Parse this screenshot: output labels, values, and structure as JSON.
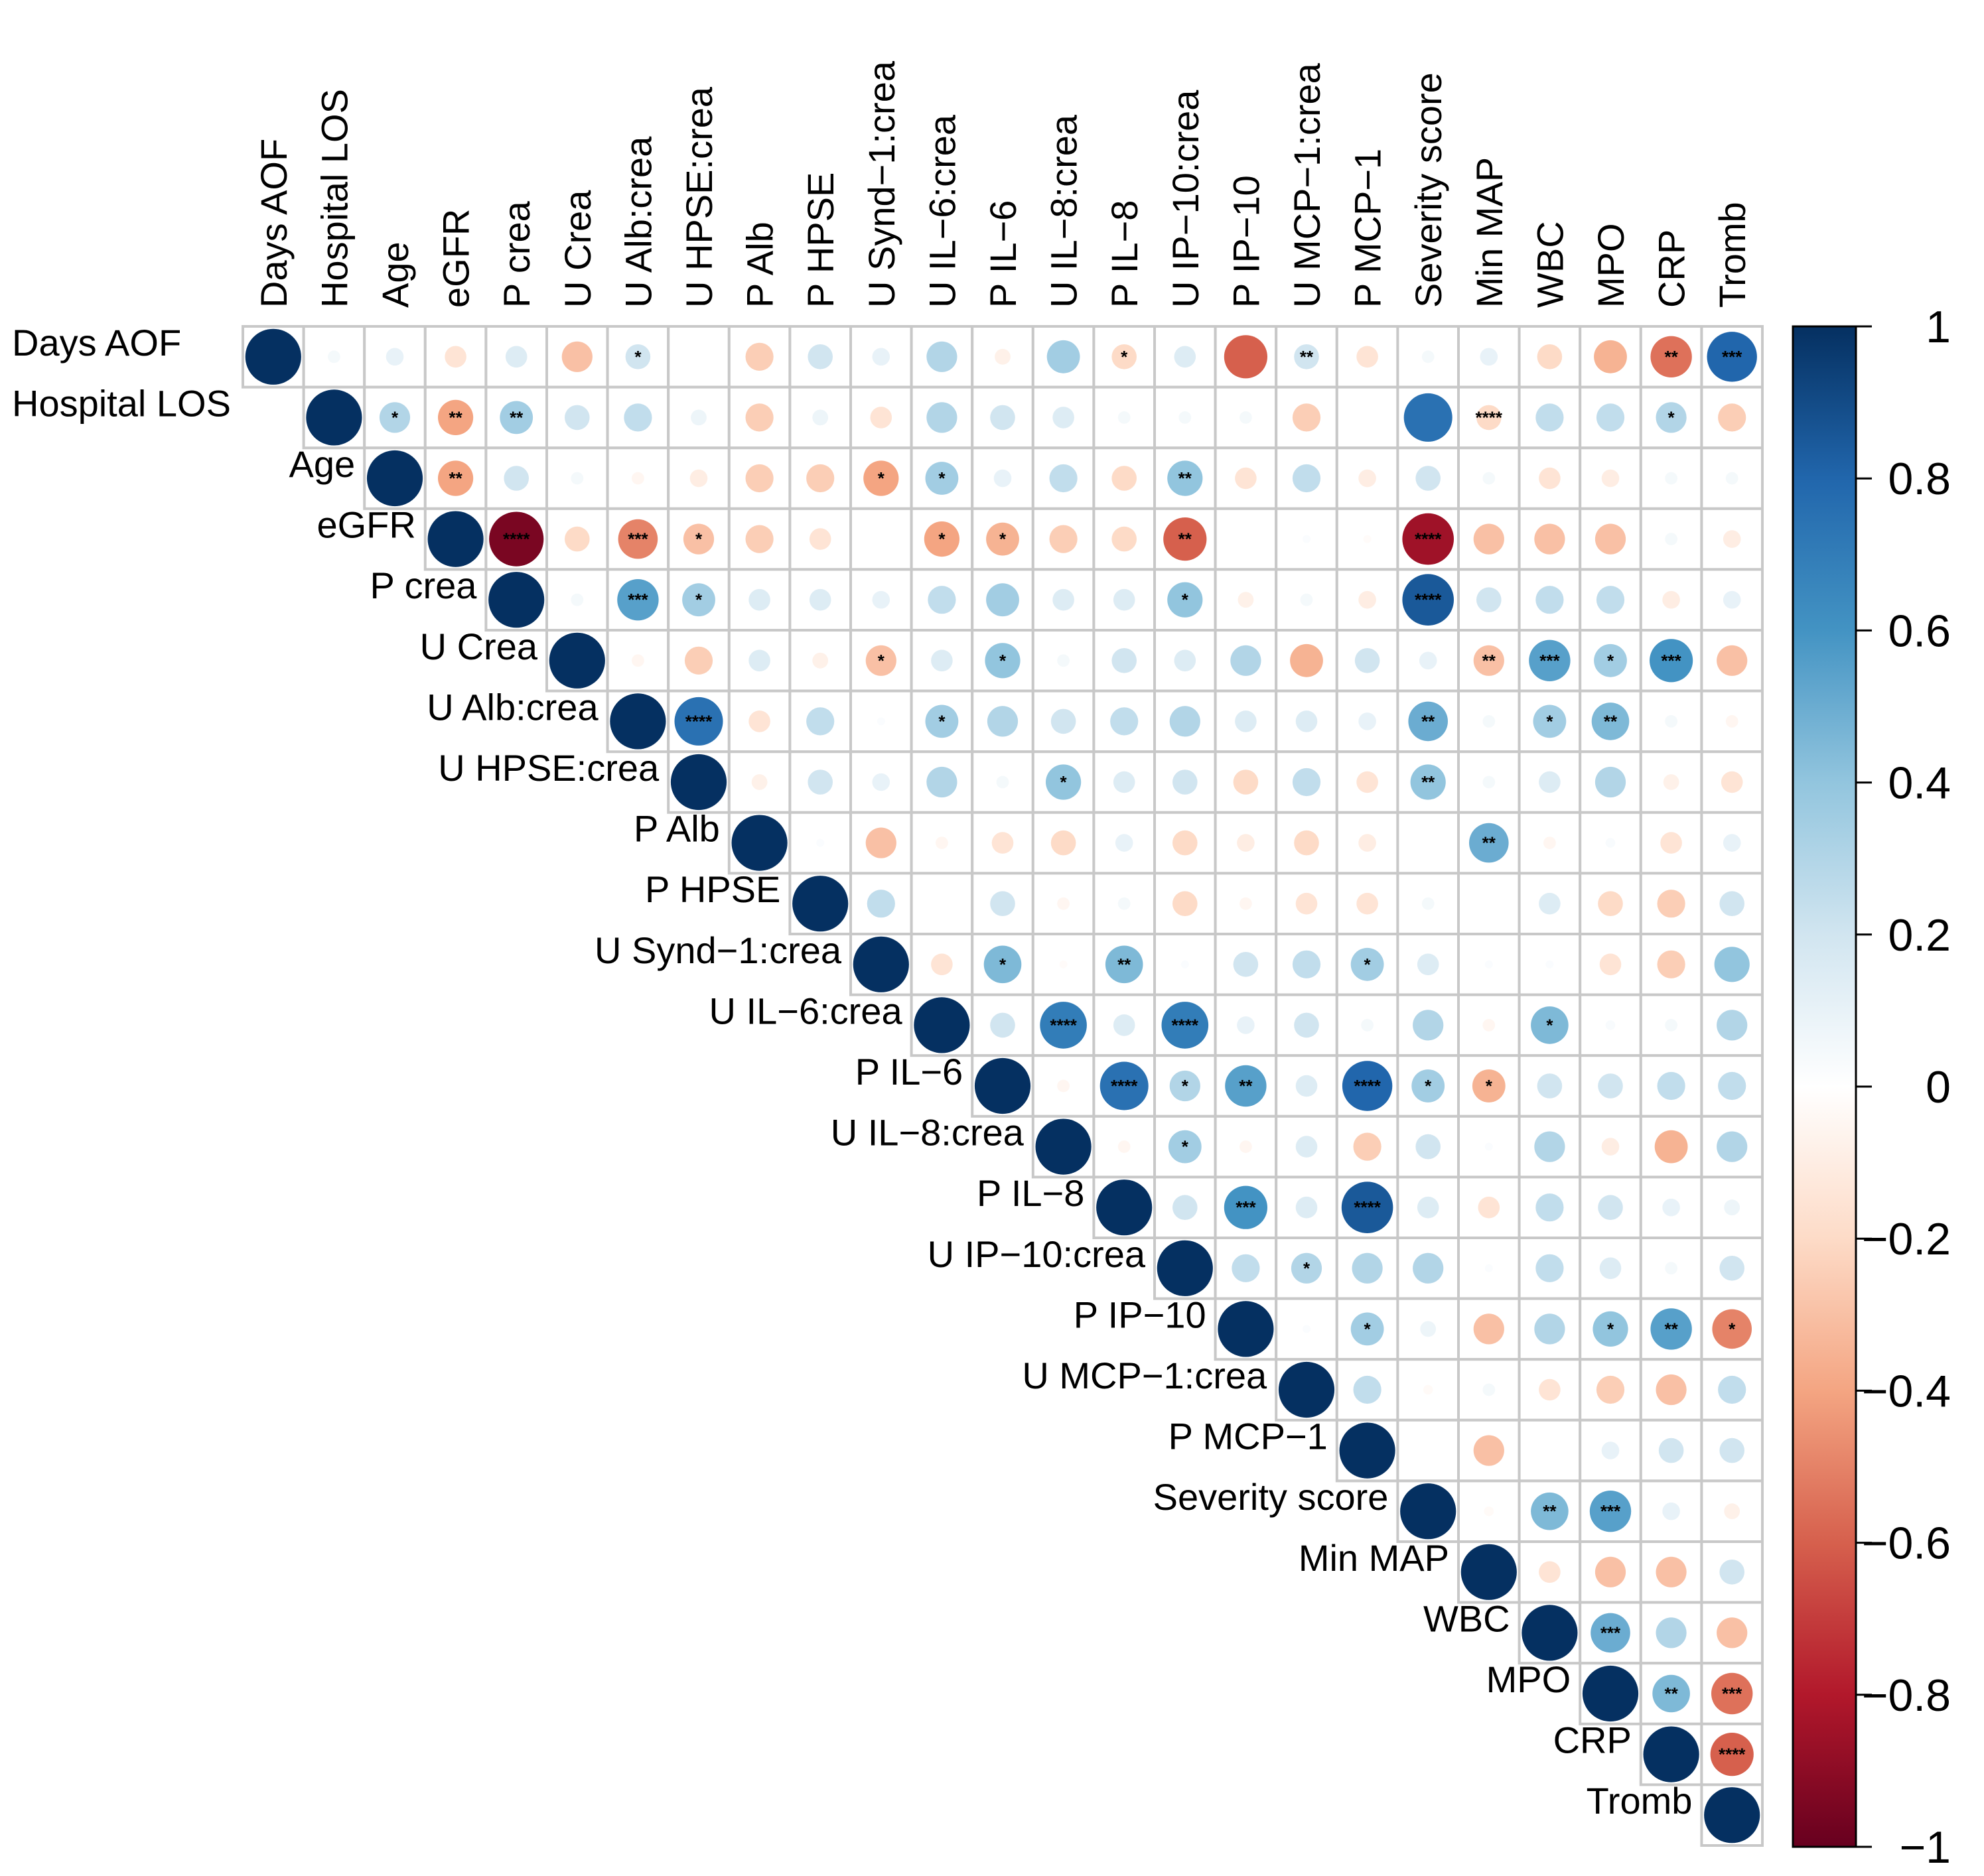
{
  "chart_data": {
    "type": "heatmap",
    "subtype": "upper-triangle correlation circles",
    "variables": [
      "Days AOF",
      "Hospital LOS",
      "Age",
      "eGFR",
      "P crea",
      "U Crea",
      "U Alb:crea",
      "U HPSE:crea",
      "P Alb",
      "P HPSE",
      "U Synd−1:crea",
      "U IL−6:crea",
      "P IL−6",
      "U IL−8:crea",
      "P IL−8",
      "U IP−10:crea",
      "P IP−10",
      "U MCP−1:crea",
      "P MCP−1",
      "Severity score",
      "Min MAP",
      "WBC",
      "MPO",
      "CRP",
      "Tromb"
    ],
    "colorbar": {
      "ticks": [
        "1",
        "0.8",
        "0.6",
        "0.4",
        "0.2",
        "0",
        "−0.2",
        "−0.4",
        "−0.6",
        "−0.8",
        "−1"
      ],
      "range": [
        -1,
        1
      ],
      "low_color": "#67001f",
      "mid_color": "#ffffff",
      "high_color": "#053061"
    },
    "rows": [
      {
        "name": "Days AOF",
        "r": [
          1,
          0.05,
          0.1,
          -0.15,
          0.15,
          -0.3,
          0.2,
          0,
          -0.25,
          0.2,
          0.1,
          0.3,
          -0.08,
          0.35,
          -0.2,
          0.15,
          -0.6,
          0.2,
          -0.15,
          0.05,
          0.1,
          -0.2,
          -0.35,
          -0.55,
          0.8
        ],
        "sig": [
          "",
          "",
          "",
          "",
          "",
          "*",
          "",
          "",
          "",
          "",
          "",
          "",
          "",
          "*",
          "",
          "",
          "**",
          "",
          "",
          "",
          "",
          "",
          "**",
          "***",
          "****"
        ]
      },
      {
        "name": "Hospital LOS",
        "r": [
          1,
          0.3,
          -0.4,
          0.35,
          0.2,
          0.25,
          0.08,
          -0.25,
          0.08,
          -0.15,
          0.3,
          0.2,
          0.15,
          0.05,
          0.05,
          0.05,
          -0.25,
          0,
          0.75,
          -0.2,
          0.25,
          0.25,
          0.3,
          -0.25
        ],
        "sig": [
          "*",
          "**",
          "**",
          "",
          "",
          "",
          "",
          "",
          "",
          "",
          "",
          "",
          "",
          "",
          "",
          "",
          "",
          "",
          "****",
          "",
          "",
          "*",
          "",
          ""
        ]
      },
      {
        "name": "Age",
        "r": [
          1,
          -0.4,
          0.2,
          0.05,
          -0.05,
          -0.1,
          -0.25,
          -0.25,
          -0.4,
          0.35,
          0.1,
          0.25,
          -0.2,
          0.4,
          -0.15,
          0.25,
          -0.1,
          0.2,
          0.05,
          -0.15,
          -0.1,
          0.05,
          0.05
        ],
        "sig": [
          "**",
          "",
          "",
          "",
          "",
          "",
          "",
          "*",
          "*",
          "",
          "",
          "",
          "**",
          "",
          "",
          "",
          "",
          "",
          "",
          "",
          "",
          ""
        ]
      },
      {
        "name": "eGFR",
        "r": [
          1,
          -0.95,
          -0.2,
          -0.5,
          -0.3,
          -0.25,
          -0.15,
          0,
          -0.4,
          -0.35,
          -0.25,
          -0.2,
          -0.6,
          0,
          0.02,
          -0.02,
          -0.85,
          -0.3,
          -0.3,
          -0.3,
          0.05,
          -0.1
        ],
        "sig": [
          "****",
          "",
          "***",
          "*",
          "",
          "",
          "",
          "*",
          "*",
          "",
          "",
          "**",
          "",
          "",
          "",
          "****",
          "",
          "",
          "",
          "",
          ""
        ]
      },
      {
        "name": "P crea",
        "r": [
          1,
          0.05,
          0.55,
          0.35,
          0.15,
          0.15,
          0.1,
          0.25,
          0.35,
          0.15,
          0.15,
          0.4,
          -0.08,
          0.05,
          -0.1,
          0.85,
          0.2,
          0.25,
          0.25,
          -0.1,
          0.1
        ],
        "sig": [
          "",
          "***",
          "*",
          "",
          "",
          "",
          "",
          "",
          "",
          "",
          "*",
          "",
          "",
          "",
          "****",
          "",
          "",
          "",
          "",
          ""
        ]
      },
      {
        "name": "U Crea",
        "r": [
          1,
          -0.05,
          -0.25,
          0.15,
          -0.08,
          -0.3,
          0.15,
          0.4,
          0.05,
          0.2,
          0.15,
          0.3,
          -0.35,
          0.2,
          0.1,
          -0.3,
          0.55,
          0.35,
          0.6,
          -0.3
        ],
        "sig": [
          "",
          "",
          "",
          "",
          "*",
          "",
          "*",
          "",
          "",
          "",
          "",
          "",
          "",
          "",
          "**",
          "***",
          "*",
          "***",
          ""
        ]
      },
      {
        "name": "U Alb:crea",
        "r": [
          1,
          0.75,
          -0.15,
          0.25,
          0.02,
          0.35,
          0.3,
          0.2,
          0.25,
          0.3,
          0.15,
          0.15,
          0.1,
          0.5,
          0.05,
          0.35,
          0.45,
          0.05,
          -0.05
        ],
        "sig": [
          "****",
          "",
          "",
          "",
          "*",
          "",
          "",
          "",
          "",
          "",
          "",
          "",
          "**",
          "",
          "*",
          "**",
          "",
          ""
        ]
      },
      {
        "name": "U HPSE:crea",
        "r": [
          1,
          -0.08,
          0.2,
          0.1,
          0.3,
          0.05,
          0.4,
          0.15,
          0.2,
          -0.2,
          0.25,
          -0.15,
          0.4,
          0.05,
          0.15,
          0.3,
          -0.08,
          -0.15
        ],
        "sig": [
          "",
          "",
          "",
          "",
          "",
          "*",
          "",
          "",
          "",
          "",
          "",
          "**",
          "",
          "",
          "",
          "",
          ""
        ]
      },
      {
        "name": "P Alb",
        "r": [
          1,
          0.02,
          -0.3,
          -0.05,
          -0.15,
          -0.2,
          0.1,
          -0.2,
          -0.1,
          -0.2,
          -0.1,
          0,
          0.5,
          -0.05,
          0.03,
          -0.15,
          0.1
        ],
        "sig": [
          "",
          "",
          "",
          "",
          "",
          "",
          "",
          "",
          "",
          "",
          "",
          "**",
          "",
          "",
          "",
          ""
        ]
      },
      {
        "name": "P HPSE",
        "r": [
          1,
          0.25,
          0,
          0.2,
          -0.05,
          0.05,
          -0.2,
          -0.05,
          -0.15,
          -0.15,
          0.05,
          0,
          0.15,
          -0.2,
          -0.25,
          0.2
        ],
        "sig": [
          "",
          "",
          "",
          "",
          "",
          "",
          "",
          "",
          "",
          "",
          "",
          "",
          "",
          "",
          ""
        ]
      },
      {
        "name": "U Synd−1:crea",
        "r": [
          1,
          -0.15,
          0.45,
          -0.02,
          0.45,
          0.02,
          0.2,
          0.25,
          0.35,
          0.15,
          0.02,
          0.02,
          -0.15,
          -0.25,
          0.4
        ],
        "sig": [
          "",
          "*",
          "",
          "**",
          "",
          "",
          "",
          "*",
          "",
          "",
          "",
          "",
          "",
          ""
        ]
      },
      {
        "name": "U IL−6:crea",
        "r": [
          1,
          0.2,
          0.7,
          0.15,
          0.7,
          0.1,
          0.2,
          0.05,
          0.3,
          -0.05,
          0.45,
          0.03,
          0.05,
          0.3
        ],
        "sig": [
          "",
          "****",
          "",
          "****",
          "",
          "",
          "",
          "",
          "",
          "*",
          "",
          "",
          ""
        ]
      },
      {
        "name": "P IL−6",
        "r": [
          1,
          -0.05,
          0.75,
          0.3,
          0.55,
          0.15,
          0.8,
          0.35,
          -0.35,
          0.2,
          0.2,
          0.25,
          0.25
        ],
        "sig": [
          "",
          "****",
          "*",
          "**",
          "",
          "****",
          "*",
          "*",
          "",
          "",
          "",
          ""
        ]
      },
      {
        "name": "U IL−8:crea",
        "r": [
          1,
          -0.05,
          0.35,
          -0.05,
          0.15,
          -0.25,
          0.2,
          0.02,
          0.3,
          -0.1,
          -0.35,
          0.3
        ],
        "sig": [
          "",
          "*",
          "",
          "",
          "",
          "",
          "",
          "",
          "",
          ""
        ]
      },
      {
        "name": "P IL−8",
        "r": [
          1,
          0.2,
          0.6,
          0.15,
          0.85,
          0.15,
          -0.15,
          0.25,
          0.2,
          0.1,
          0.08
        ],
        "sig": [
          "",
          "***",
          "",
          "****",
          "",
          "",
          "",
          "",
          "",
          ""
        ]
      },
      {
        "name": "U IP−10:crea",
        "r": [
          1,
          0.25,
          0.3,
          0.3,
          0.3,
          0.02,
          0.25,
          0.15,
          0.05,
          0.2
        ],
        "sig": [
          "",
          "*",
          "",
          "",
          "",
          "",
          "",
          "",
          ""
        ]
      },
      {
        "name": "P IP−10",
        "r": [
          1,
          0.02,
          0.35,
          0.08,
          -0.3,
          0.3,
          0.4,
          0.55,
          -0.5
        ],
        "sig": [
          "",
          "*",
          "",
          "",
          "",
          "*",
          "**",
          "*"
        ]
      },
      {
        "name": "U MCP−1:crea",
        "r": [
          1,
          0.25,
          -0.03,
          0.05,
          -0.15,
          -0.25,
          -0.3,
          0.25
        ],
        "sig": [
          "",
          "",
          "",
          "",
          "",
          "",
          ""
        ]
      },
      {
        "name": "P MCP−1",
        "r": [
          1,
          0,
          -0.3,
          0,
          0.1,
          0.2,
          0.2
        ],
        "sig": [
          "",
          "",
          "",
          "",
          "",
          ""
        ]
      },
      {
        "name": "Severity score",
        "r": [
          1,
          -0.03,
          0.45,
          0.55,
          0.1,
          -0.08
        ],
        "sig": [
          "",
          "**",
          "***",
          "",
          ""
        ]
      },
      {
        "name": "Min MAP",
        "r": [
          1,
          -0.15,
          -0.3,
          -0.3,
          0.2
        ],
        "sig": [
          "",
          "",
          "",
          ""
        ]
      },
      {
        "name": "WBC",
        "r": [
          1,
          0.5,
          0.3,
          -0.3
        ],
        "sig": [
          "***",
          "",
          ""
        ]
      },
      {
        "name": "MPO",
        "r": [
          1,
          0.45,
          -0.55
        ],
        "sig": [
          "**",
          "***"
        ]
      },
      {
        "name": "CRP",
        "r": [
          1,
          -0.6
        ],
        "sig": [
          "****"
        ]
      },
      {
        "name": "Tromb",
        "r": [
          1
        ],
        "sig": []
      }
    ]
  }
}
